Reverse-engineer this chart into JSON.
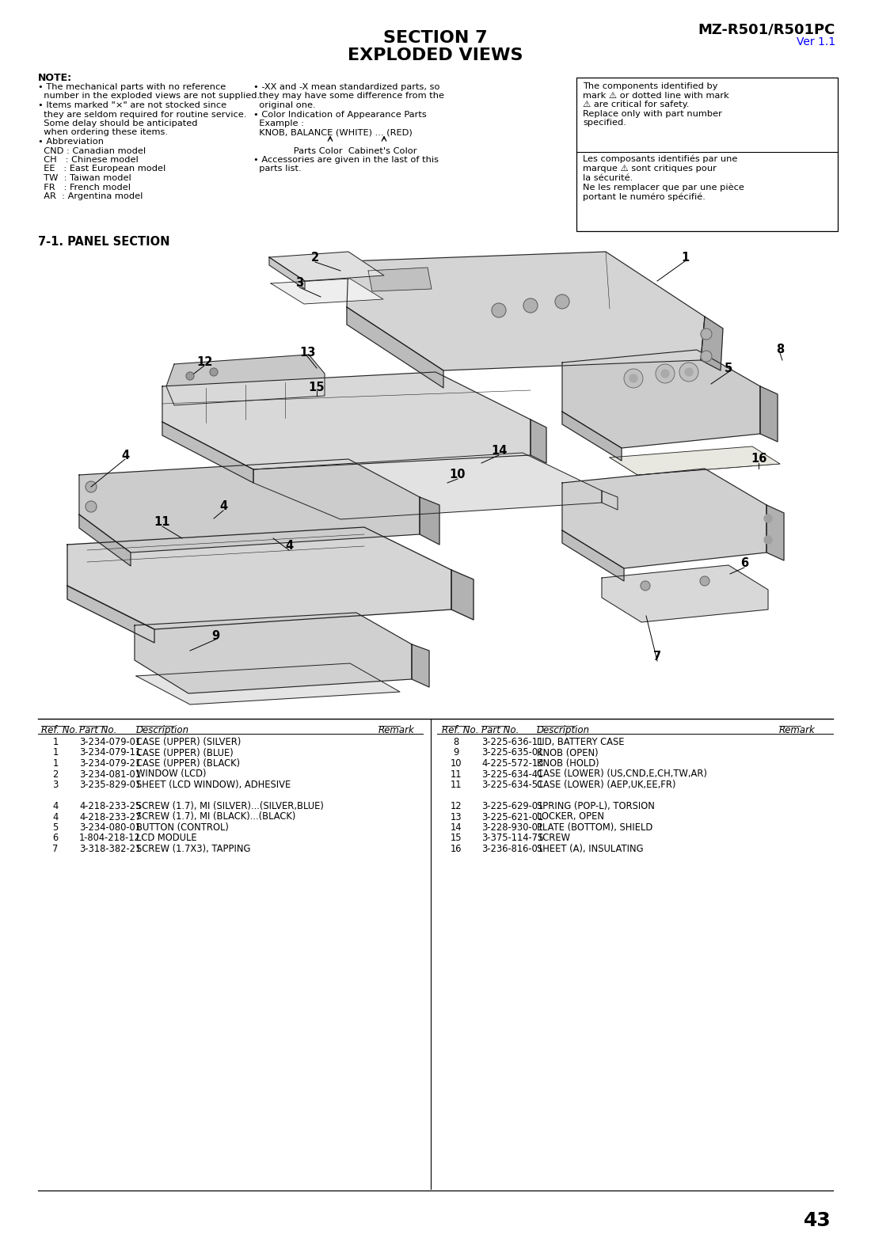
{
  "title_line1": "SECTION 7",
  "title_line2": "EXPLODED VIEWS",
  "model": "MZ-R501/R501PC",
  "version": "Ver 1.1",
  "page_number": "43",
  "section_title": "7-1. PANEL SECTION",
  "parts_left": [
    [
      "1",
      "3-234-079-01",
      "CASE (UPPER) (SILVER)",
      ""
    ],
    [
      "1",
      "3-234-079-11",
      "CASE (UPPER) (BLUE)",
      ""
    ],
    [
      "1",
      "3-234-079-21",
      "CASE (UPPER) (BLACK)",
      ""
    ],
    [
      "2",
      "3-234-081-01",
      "WINDOW (LCD)",
      ""
    ],
    [
      "3",
      "3-235-829-01",
      "SHEET (LCD WINDOW), ADHESIVE",
      ""
    ],
    [
      "",
      "",
      "",
      ""
    ],
    [
      "4",
      "4-218-233-25",
      "SCREW (1.7), MI (SILVER)...(SILVER,BLUE)",
      ""
    ],
    [
      "4",
      "4-218-233-27",
      "SCREW (1.7), MI (BLACK)...(BLACK)",
      ""
    ],
    [
      "5",
      "3-234-080-01",
      "BUTTON (CONTROL)",
      ""
    ],
    [
      "6",
      "1-804-218-12",
      "LCD MODULE",
      ""
    ],
    [
      "7",
      "3-318-382-21",
      "SCREW (1.7X3), TAPPING",
      ""
    ]
  ],
  "parts_right": [
    [
      "8",
      "3-225-636-11",
      "LID, BATTERY CASE",
      ""
    ],
    [
      "9",
      "3-225-635-01",
      "KNOB (OPEN)",
      ""
    ],
    [
      "10",
      "4-225-572-13",
      "KNOB (HOLD)",
      ""
    ],
    [
      "11",
      "3-225-634-41",
      "CASE (LOWER) (US,CND,E,CH,TW,AR)",
      ""
    ],
    [
      "11",
      "3-225-634-51",
      "CASE (LOWER) (AEP,UK,EE,FR)",
      ""
    ],
    [
      "",
      "",
      "",
      ""
    ],
    [
      "12",
      "3-225-629-01",
      "SPRING (POP-L), TORSION",
      ""
    ],
    [
      "13",
      "3-225-621-01",
      "LOCKER, OPEN",
      ""
    ],
    [
      "14",
      "3-228-930-01",
      "PLATE (BOTTOM), SHIELD",
      ""
    ],
    [
      "15",
      "3-375-114-71",
      "SCREW",
      ""
    ],
    [
      "16",
      "3-236-816-01",
      "SHEET (A), INSULATING",
      ""
    ]
  ],
  "bg_color": "#ffffff",
  "text_color": "#000000"
}
